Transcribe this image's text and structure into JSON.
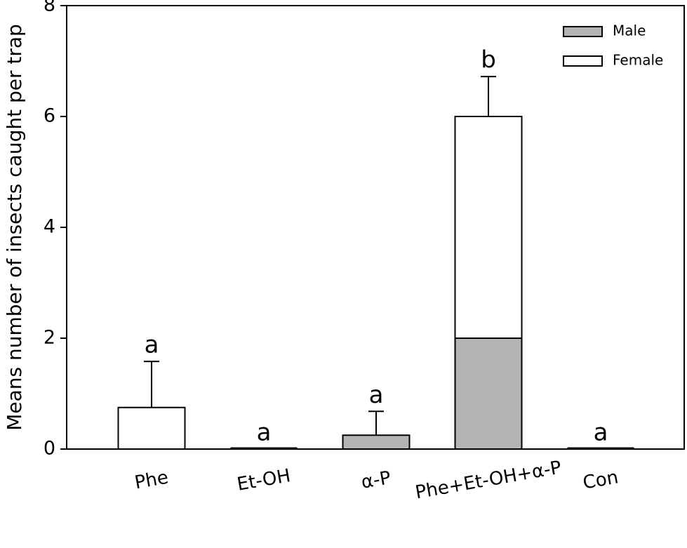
{
  "chart_data": {
    "type": "bar",
    "stacked": true,
    "y_label": "Means number of insects caught per trap",
    "categories": [
      "Phe",
      "Et-OH",
      "α-P",
      "Phe+Et-OH+α-P",
      "Con"
    ],
    "series": [
      {
        "name": "Male",
        "color": "#b4b4b4",
        "values": [
          0,
          0,
          0.25,
          2,
          0
        ]
      },
      {
        "name": "Female",
        "color": "#ffffff",
        "values": [
          0.75,
          0,
          0,
          4,
          0
        ]
      }
    ],
    "errors": [
      0.83,
      null,
      0.43,
      0.72,
      null
    ],
    "annotations": [
      "a",
      "a",
      "a",
      "b",
      "a"
    ],
    "ylim": [
      0,
      8
    ],
    "yticks": [
      0,
      2,
      4,
      6,
      8
    ],
    "legend": "upper right"
  }
}
